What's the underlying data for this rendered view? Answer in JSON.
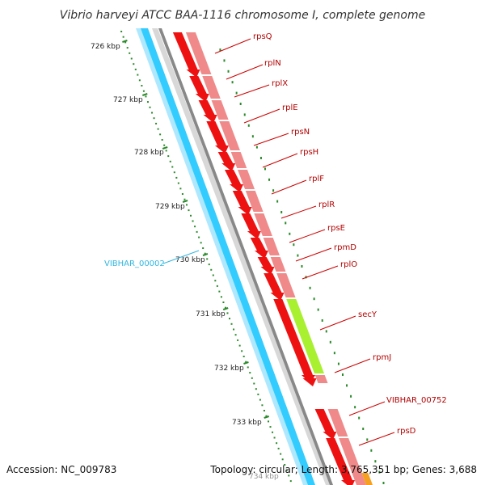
{
  "title": "Vibrio harveyi ATCC BAA-1116 chromosome I, complete genome",
  "footer": {
    "accession": "Accession: NC_009783",
    "summary": "Topology: circular; Length: 3,765,351 bp; Genes: 3,688"
  },
  "scale_labels": [
    "726 kbp",
    "727 kbp",
    "728 kbp",
    "729 kbp",
    "730 kbp",
    "731 kbp",
    "732 kbp",
    "733 kbp",
    "734 kbp"
  ],
  "genes": [
    {
      "name": "rpsQ",
      "color": "#cc0000"
    },
    {
      "name": "rplN",
      "color": "#cc0000"
    },
    {
      "name": "rplX",
      "color": "#cc0000"
    },
    {
      "name": "rplE",
      "color": "#cc0000"
    },
    {
      "name": "rpsN",
      "color": "#cc0000"
    },
    {
      "name": "rpsH",
      "color": "#cc0000"
    },
    {
      "name": "rplF",
      "color": "#cc0000"
    },
    {
      "name": "rplR",
      "color": "#cc0000"
    },
    {
      "name": "rpsE",
      "color": "#cc0000"
    },
    {
      "name": "rpmD",
      "color": "#cc0000"
    },
    {
      "name": "rplO",
      "color": "#cc0000"
    },
    {
      "name": "secY",
      "color": "#cc0000"
    },
    {
      "name": "rpmJ",
      "color": "#cc0000"
    },
    {
      "name": "VIBHAR_00752",
      "color": "#cc0000"
    },
    {
      "name": "rpsD",
      "color": "#cc0000"
    }
  ],
  "reverse_gene": {
    "name": "VIBHAR_00002",
    "color": "#2fb6e0"
  },
  "colors": {
    "gene_arrow": "#ee1111",
    "gene_band": "#f08a8a",
    "secY_band": "#a8f030",
    "orange_band": "#f5a020",
    "backbone": "#888888",
    "reverse_band": "#33ccff",
    "reverse_band_light": "#aee8ff",
    "ticks": "#2a8a2a"
  }
}
